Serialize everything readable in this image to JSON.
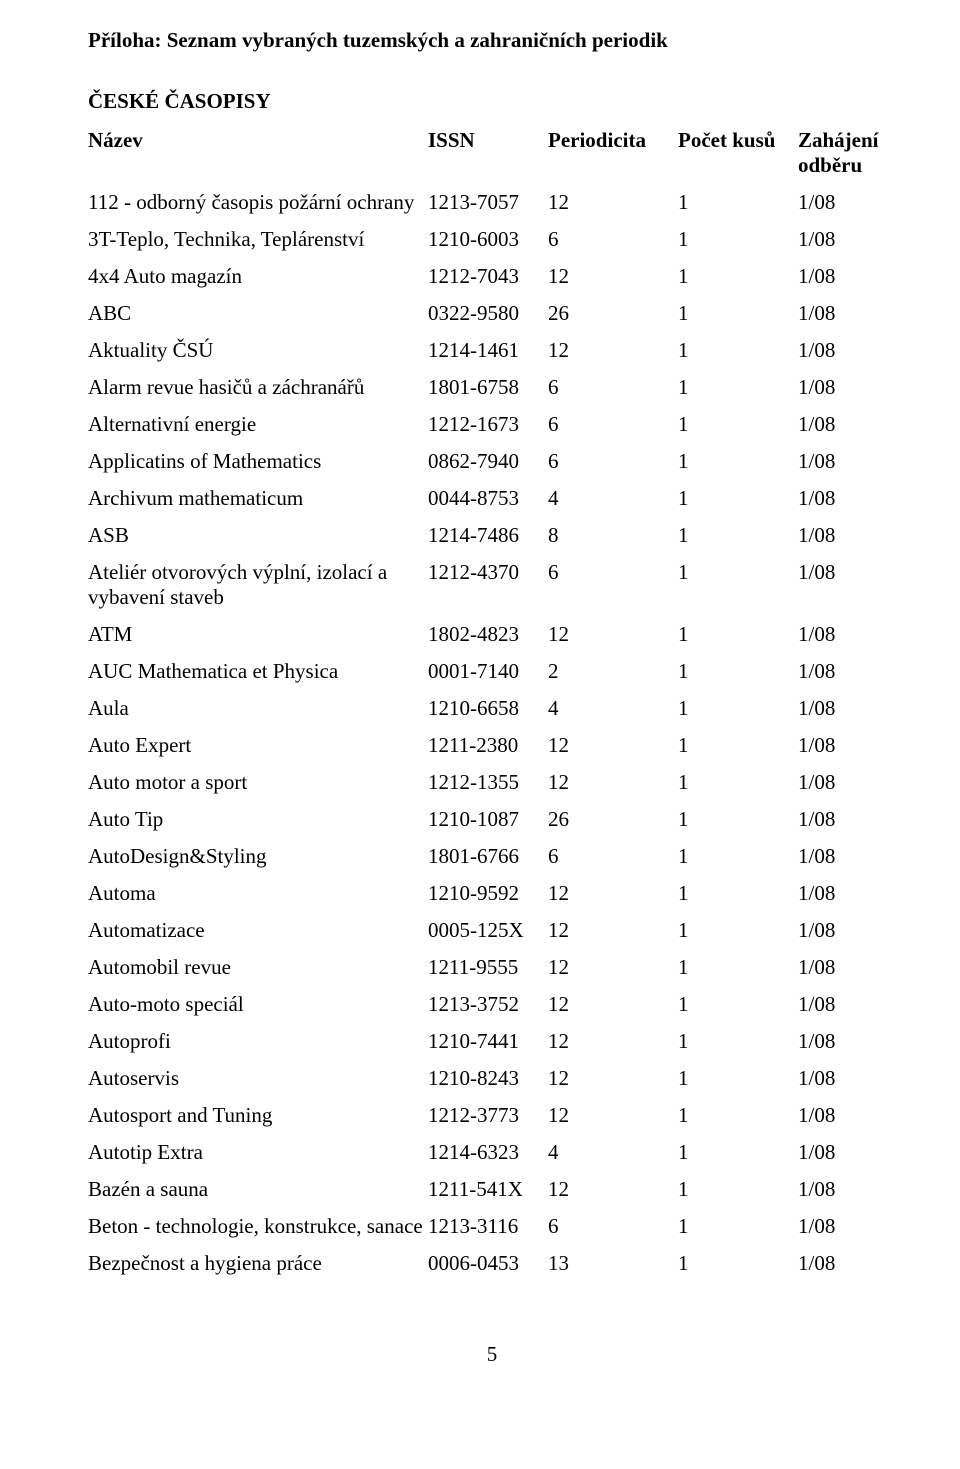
{
  "page": {
    "title": "Příloha: Seznam vybraných tuzemských a zahraničních periodik",
    "section": "ČESKÉ ČASOPISY",
    "page_number": "5"
  },
  "table": {
    "columns": [
      "Název",
      "ISSN",
      "Periodicita",
      "Počet kusů",
      "Zahájení odběru"
    ],
    "rows": [
      [
        "112 - odborný časopis požární ochrany",
        "1213-7057",
        "12",
        "1",
        "1/08"
      ],
      [
        "3T-Teplo, Technika, Teplárenství",
        "1210-6003",
        "6",
        "1",
        "1/08"
      ],
      [
        "4x4 Auto magazín",
        "1212-7043",
        "12",
        "1",
        "1/08"
      ],
      [
        "ABC",
        "0322-9580",
        "26",
        "1",
        "1/08"
      ],
      [
        "Aktuality ČSÚ",
        "1214-1461",
        "12",
        "1",
        "1/08"
      ],
      [
        "Alarm revue hasičů a záchranářů",
        "1801-6758",
        "6",
        "1",
        "1/08"
      ],
      [
        "Alternativní energie",
        "1212-1673",
        "6",
        "1",
        "1/08"
      ],
      [
        "Applicatins of Mathematics",
        "0862-7940",
        "6",
        "1",
        "1/08"
      ],
      [
        "Archivum mathematicum",
        "0044-8753",
        "4",
        "1",
        "1/08"
      ],
      [
        "ASB",
        "1214-7486",
        "8",
        "1",
        "1/08"
      ],
      [
        "Ateliér otvorových výplní, izolací a vybavení staveb",
        "1212-4370",
        "6",
        "1",
        "1/08"
      ],
      [
        "ATM",
        "1802-4823",
        "12",
        "1",
        "1/08"
      ],
      [
        "AUC Mathematica et Physica",
        "0001-7140",
        "2",
        "1",
        "1/08"
      ],
      [
        "Aula",
        "1210-6658",
        "4",
        "1",
        "1/08"
      ],
      [
        "Auto Expert",
        "1211-2380",
        "12",
        "1",
        "1/08"
      ],
      [
        "Auto motor a sport",
        "1212-1355",
        "12",
        "1",
        "1/08"
      ],
      [
        "Auto Tip",
        "1210-1087",
        "26",
        "1",
        "1/08"
      ],
      [
        "AutoDesign&Styling",
        "1801-6766",
        "6",
        "1",
        "1/08"
      ],
      [
        "Automa",
        "1210-9592",
        "12",
        "1",
        "1/08"
      ],
      [
        "Automatizace",
        "0005-125X",
        "12",
        "1",
        "1/08"
      ],
      [
        "Automobil revue",
        "1211-9555",
        "12",
        "1",
        "1/08"
      ],
      [
        "Auto-moto speciál",
        "1213-3752",
        "12",
        "1",
        "1/08"
      ],
      [
        "Autoprofi",
        "1210-7441",
        "12",
        "1",
        "1/08"
      ],
      [
        "Autoservis",
        "1210-8243",
        "12",
        "1",
        "1/08"
      ],
      [
        "Autosport and Tuning",
        "1212-3773",
        "12",
        "1",
        "1/08"
      ],
      [
        "Autotip Extra",
        "1214-6323",
        "4",
        "1",
        "1/08"
      ],
      [
        "Bazén a sauna",
        "1211-541X",
        "12",
        "1",
        "1/08"
      ],
      [
        "Beton - technologie, konstrukce, sanace",
        "1213-3116",
        "6",
        "1",
        "1/08"
      ],
      [
        "Bezpečnost a hygiena práce",
        "0006-0453",
        "13",
        "1",
        "1/08"
      ]
    ]
  }
}
